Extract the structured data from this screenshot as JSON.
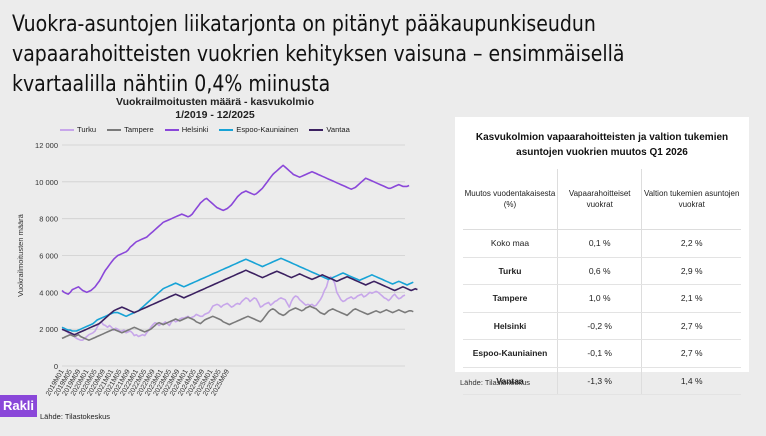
{
  "headline": "Vuokra-asuntojen liikatarjonta on pitänyt pääkaupunkiseudun vapaarahoitteisten vuokrien kehityksen vaisuna – ensimmäisellä kvartaalilla nähtiin 0,4% miinusta",
  "chart_data": {
    "type": "line",
    "title": "Vuokrailmoitusten määrä - kasvukolmio",
    "subtitle": "1/2019 - 12/2025",
    "ylabel": "Vuokrailmoitusten määrä",
    "ylim": [
      0,
      12000
    ],
    "yticks": [
      "0",
      "2 000",
      "4 000",
      "6 000",
      "8 000",
      "10 000",
      "12 000"
    ],
    "grid": true,
    "legend_position": "top",
    "x_tick_labels": [
      "2019M01",
      "2019M05",
      "2019M09",
      "2020M01",
      "2020M05",
      "2020M09",
      "2021M01",
      "2021M05",
      "2021M09",
      "2022M01",
      "2022M05",
      "2022M09",
      "2023M01",
      "2023M05",
      "2023M09",
      "2024M01",
      "2024M05",
      "2024M09",
      "2025M01",
      "2025M05",
      "2025M09"
    ],
    "series": [
      {
        "name": "Turku",
        "color": "#c7a6ea",
        "values": [
          1950,
          2000,
          1900,
          1800,
          1700,
          1750,
          1600,
          1500,
          1450,
          1400,
          1400,
          1500,
          1600,
          1700,
          1750,
          1800,
          1900,
          2100,
          2300,
          2400,
          2250,
          2200,
          2100,
          2200,
          2100,
          1950,
          2050,
          2000,
          1900,
          1900,
          1950,
          1800,
          1850,
          1900,
          1800,
          1650,
          1700,
          1600,
          1650,
          1700,
          1650,
          1800,
          1950,
          2100,
          2250,
          2350,
          2300,
          2200,
          2300,
          2300,
          2400,
          2300,
          2200,
          2400,
          2500,
          2400,
          2450,
          2550,
          2600,
          2600,
          2650,
          2700,
          2600,
          2650,
          2700,
          2800,
          2750,
          2700,
          2700,
          2800,
          2850,
          2900,
          3050,
          3250,
          3300,
          3350,
          3300,
          3200,
          3300,
          3350,
          3400,
          3300,
          3200,
          3250,
          3350,
          3400,
          3350,
          3500,
          3600,
          3700,
          3650,
          3500,
          3600,
          3700,
          3650,
          3450,
          3200,
          3250,
          3350,
          3400,
          3450,
          3300,
          3400,
          3500,
          3550,
          3650,
          3700,
          3650,
          3600,
          3400,
          3200,
          3500,
          3700,
          3800,
          3750,
          3600,
          3500,
          3400,
          3300,
          3350,
          3300,
          3350,
          3250,
          3300,
          3450,
          3600,
          3800,
          4100,
          4300,
          4700,
          4850,
          4700,
          4500,
          4000,
          3800,
          3600,
          3500,
          3550,
          3650,
          3700,
          3750,
          3650,
          3700,
          3800,
          3850,
          3900,
          3750,
          3800,
          3900,
          4000,
          3950,
          4000,
          4050,
          4000,
          3900,
          3800,
          3700,
          3650,
          3550,
          3650,
          3800,
          3900,
          3750,
          3650,
          3700,
          3800,
          3850
        ]
      },
      {
        "name": "Tampere",
        "color": "#7a7a7a",
        "values": [
          1500,
          1550,
          1600,
          1650,
          1700,
          1650,
          1600,
          1650,
          1700,
          1600,
          1550,
          1500,
          1450,
          1400,
          1450,
          1500,
          1550,
          1600,
          1650,
          1700,
          1750,
          1800,
          1850,
          1900,
          1950,
          2000,
          1950,
          1900,
          1850,
          1800,
          1850,
          1900,
          1950,
          2000,
          2050,
          2100,
          2050,
          2000,
          1950,
          1900,
          1850,
          1900,
          1950,
          2000,
          2100,
          2200,
          2300,
          2350,
          2300,
          2250,
          2300,
          2350,
          2400,
          2450,
          2500,
          2550,
          2500,
          2450,
          2500,
          2550,
          2600,
          2650,
          2600,
          2550,
          2500,
          2400,
          2350,
          2300,
          2400,
          2500,
          2550,
          2600,
          2650,
          2700,
          2650,
          2600,
          2550,
          2500,
          2400,
          2350,
          2300,
          2250,
          2300,
          2350,
          2400,
          2450,
          2500,
          2550,
          2600,
          2650,
          2700,
          2650,
          2600,
          2550,
          2500,
          2450,
          2400,
          2500,
          2650,
          2800,
          2950,
          3050,
          3100,
          3050,
          2950,
          2850,
          2800,
          2750,
          2800,
          2900,
          3000,
          3050,
          3100,
          3150,
          3100,
          3050,
          3000,
          3050,
          3150,
          3200,
          3250,
          3200,
          3150,
          3100,
          3000,
          2900,
          2850,
          2800,
          2900,
          3000,
          3050,
          3100,
          3050,
          3000,
          2950,
          2900,
          2850,
          2800,
          2750,
          2850,
          2950,
          3050,
          3100,
          3050,
          3000,
          2950,
          2900,
          2850,
          2800,
          2850,
          2900,
          2950,
          3000,
          2950,
          2900,
          2950,
          3000,
          3050,
          3000,
          2950,
          2900,
          2950,
          3000,
          3050,
          3000,
          2950,
          2900,
          2950,
          3000,
          3000,
          2950
        ]
      },
      {
        "name": "Helsinki",
        "color": "#8a47d9",
        "values": [
          4100,
          4000,
          3950,
          3900,
          4000,
          4150,
          4200,
          4250,
          4300,
          4200,
          4100,
          4050,
          4000,
          4050,
          4100,
          4200,
          4300,
          4450,
          4600,
          4800,
          5000,
          5200,
          5350,
          5500,
          5650,
          5800,
          5900,
          6000,
          6050,
          6100,
          6150,
          6200,
          6300,
          6450,
          6550,
          6650,
          6750,
          6800,
          6850,
          6900,
          6950,
          7000,
          7100,
          7200,
          7300,
          7400,
          7500,
          7600,
          7700,
          7800,
          7850,
          7900,
          7950,
          8000,
          8050,
          8100,
          8150,
          8200,
          8250,
          8200,
          8150,
          8100,
          8150,
          8250,
          8400,
          8550,
          8700,
          8850,
          8950,
          9050,
          9100,
          9000,
          8900,
          8800,
          8700,
          8600,
          8550,
          8500,
          8450,
          8500,
          8550,
          8650,
          8750,
          8900,
          9050,
          9200,
          9300,
          9400,
          9450,
          9500,
          9450,
          9400,
          9350,
          9300,
          9350,
          9450,
          9550,
          9650,
          9800,
          9950,
          10100,
          10250,
          10400,
          10500,
          10600,
          10700,
          10800,
          10900,
          10800,
          10700,
          10600,
          10500,
          10400,
          10350,
          10300,
          10250,
          10300,
          10350,
          10400,
          10450,
          10500,
          10550,
          10500,
          10450,
          10400,
          10350,
          10300,
          10250,
          10200,
          10150,
          10100,
          10050,
          10000,
          9950,
          9900,
          9850,
          9800,
          9750,
          9700,
          9650,
          9600,
          9650,
          9700,
          9800,
          9900,
          10000,
          10100,
          10200,
          10150,
          10100,
          10050,
          10000,
          9950,
          9900,
          9850,
          9800,
          9750,
          9700,
          9650,
          9650,
          9700,
          9750,
          9800,
          9850,
          9800,
          9750,
          9750,
          9750,
          9800
        ]
      },
      {
        "name": "Espoo-Kauniainen",
        "color": "#17a3d6",
        "values": [
          2100,
          2050,
          2000,
          1950,
          1950,
          1900,
          1900,
          1900,
          1950,
          2000,
          2050,
          2100,
          2150,
          2200,
          2250,
          2300,
          2400,
          2500,
          2550,
          2600,
          2650,
          2700,
          2750,
          2800,
          2850,
          2900,
          2900,
          2900,
          2850,
          2800,
          2750,
          2700,
          2750,
          2800,
          2850,
          2900,
          2950,
          3000,
          3100,
          3200,
          3300,
          3400,
          3500,
          3600,
          3700,
          3800,
          3900,
          4000,
          4100,
          4200,
          4250,
          4300,
          4350,
          4400,
          4450,
          4500,
          4450,
          4400,
          4350,
          4300,
          4350,
          4400,
          4450,
          4500,
          4550,
          4600,
          4650,
          4700,
          4750,
          4800,
          4850,
          4900,
          4950,
          5000,
          5050,
          5100,
          5150,
          5200,
          5250,
          5300,
          5350,
          5400,
          5450,
          5500,
          5550,
          5600,
          5650,
          5700,
          5750,
          5800,
          5750,
          5700,
          5650,
          5600,
          5550,
          5500,
          5450,
          5400,
          5450,
          5500,
          5550,
          5600,
          5650,
          5700,
          5750,
          5800,
          5850,
          5800,
          5750,
          5700,
          5650,
          5600,
          5550,
          5500,
          5450,
          5400,
          5350,
          5300,
          5250,
          5200,
          5150,
          5100,
          5050,
          5000,
          4950,
          4900,
          4850,
          4800,
          4750,
          4700,
          4750,
          4800,
          4850,
          4900,
          4950,
          5000,
          5050,
          5000,
          4950,
          4900,
          4850,
          4800,
          4750,
          4700,
          4650,
          4700,
          4750,
          4800,
          4850,
          4900,
          4950,
          4900,
          4850,
          4800,
          4750,
          4700,
          4650,
          4600,
          4550,
          4500,
          4450,
          4500,
          4550,
          4600,
          4550,
          4500,
          4450,
          4400,
          4450,
          4500,
          4550
        ]
      },
      {
        "name": "Vantaa",
        "color": "#3b2060",
        "values": [
          2000,
          1950,
          1900,
          1850,
          1800,
          1750,
          1700,
          1750,
          1800,
          1850,
          1900,
          1950,
          2000,
          2050,
          2100,
          2150,
          2200,
          2250,
          2300,
          2400,
          2500,
          2600,
          2700,
          2800,
          2900,
          3000,
          3050,
          3100,
          3150,
          3200,
          3150,
          3100,
          3050,
          3000,
          2950,
          2900,
          2950,
          3000,
          3050,
          3100,
          3150,
          3200,
          3250,
          3300,
          3350,
          3400,
          3450,
          3500,
          3550,
          3600,
          3650,
          3700,
          3750,
          3800,
          3850,
          3900,
          3850,
          3800,
          3750,
          3700,
          3750,
          3800,
          3850,
          3900,
          3950,
          4000,
          4050,
          4100,
          4150,
          4200,
          4250,
          4300,
          4350,
          4400,
          4450,
          4500,
          4550,
          4600,
          4650,
          4700,
          4750,
          4800,
          4850,
          4900,
          4950,
          5000,
          5050,
          5100,
          5150,
          5200,
          5150,
          5100,
          5050,
          5000,
          4950,
          4900,
          4850,
          4800,
          4850,
          4900,
          4950,
          5000,
          5050,
          5100,
          5150,
          5100,
          5050,
          5000,
          4950,
          4900,
          4850,
          4800,
          4850,
          4900,
          4950,
          5000,
          4950,
          4900,
          4850,
          4800,
          4750,
          4700,
          4750,
          4800,
          4850,
          4900,
          4950,
          4900,
          4850,
          4800,
          4750,
          4700,
          4650,
          4600,
          4650,
          4700,
          4750,
          4800,
          4850,
          4800,
          4750,
          4700,
          4650,
          4600,
          4550,
          4500,
          4450,
          4400,
          4450,
          4500,
          4550,
          4600,
          4550,
          4500,
          4450,
          4400,
          4350,
          4300,
          4250,
          4200,
          4150,
          4100,
          4150,
          4200,
          4250,
          4300,
          4250,
          4200,
          4150,
          4100,
          4150,
          4200,
          4150
        ]
      }
    ]
  },
  "table": {
    "title": "Kasvukolmion vapaarahoitteisten ja valtion tukemien asuntojen vuokrien muutos Q1 2026",
    "headers": [
      "Muutos vuodentakaisesta (%)",
      "Vapaarahoitteiset vuokrat",
      "Valtion tukemien asuntojen vuokrat"
    ],
    "rows": [
      {
        "label": "Koko maa",
        "free": "0,1 %",
        "state": "2,2 %",
        "bold": false
      },
      {
        "label": "Turku",
        "free": "0,6 %",
        "state": "2,9 %",
        "bold": true
      },
      {
        "label": "Tampere",
        "free": "1,0 %",
        "state": "2,1 %",
        "bold": true
      },
      {
        "label": "Helsinki",
        "free": "-0,2 %",
        "state": "2,7 %",
        "bold": true
      },
      {
        "label": "Espoo-Kauniainen",
        "free": "-0,1 %",
        "state": "2,7 %",
        "bold": true
      },
      {
        "label": "Vantaa",
        "free": "-1,3 %",
        "state": "1,4 %",
        "bold": true
      }
    ]
  },
  "table_source": "Lähde: Tilastokeskus",
  "chart_source": "Lähde: Tilastokeskus",
  "logo_text": "Rakli"
}
